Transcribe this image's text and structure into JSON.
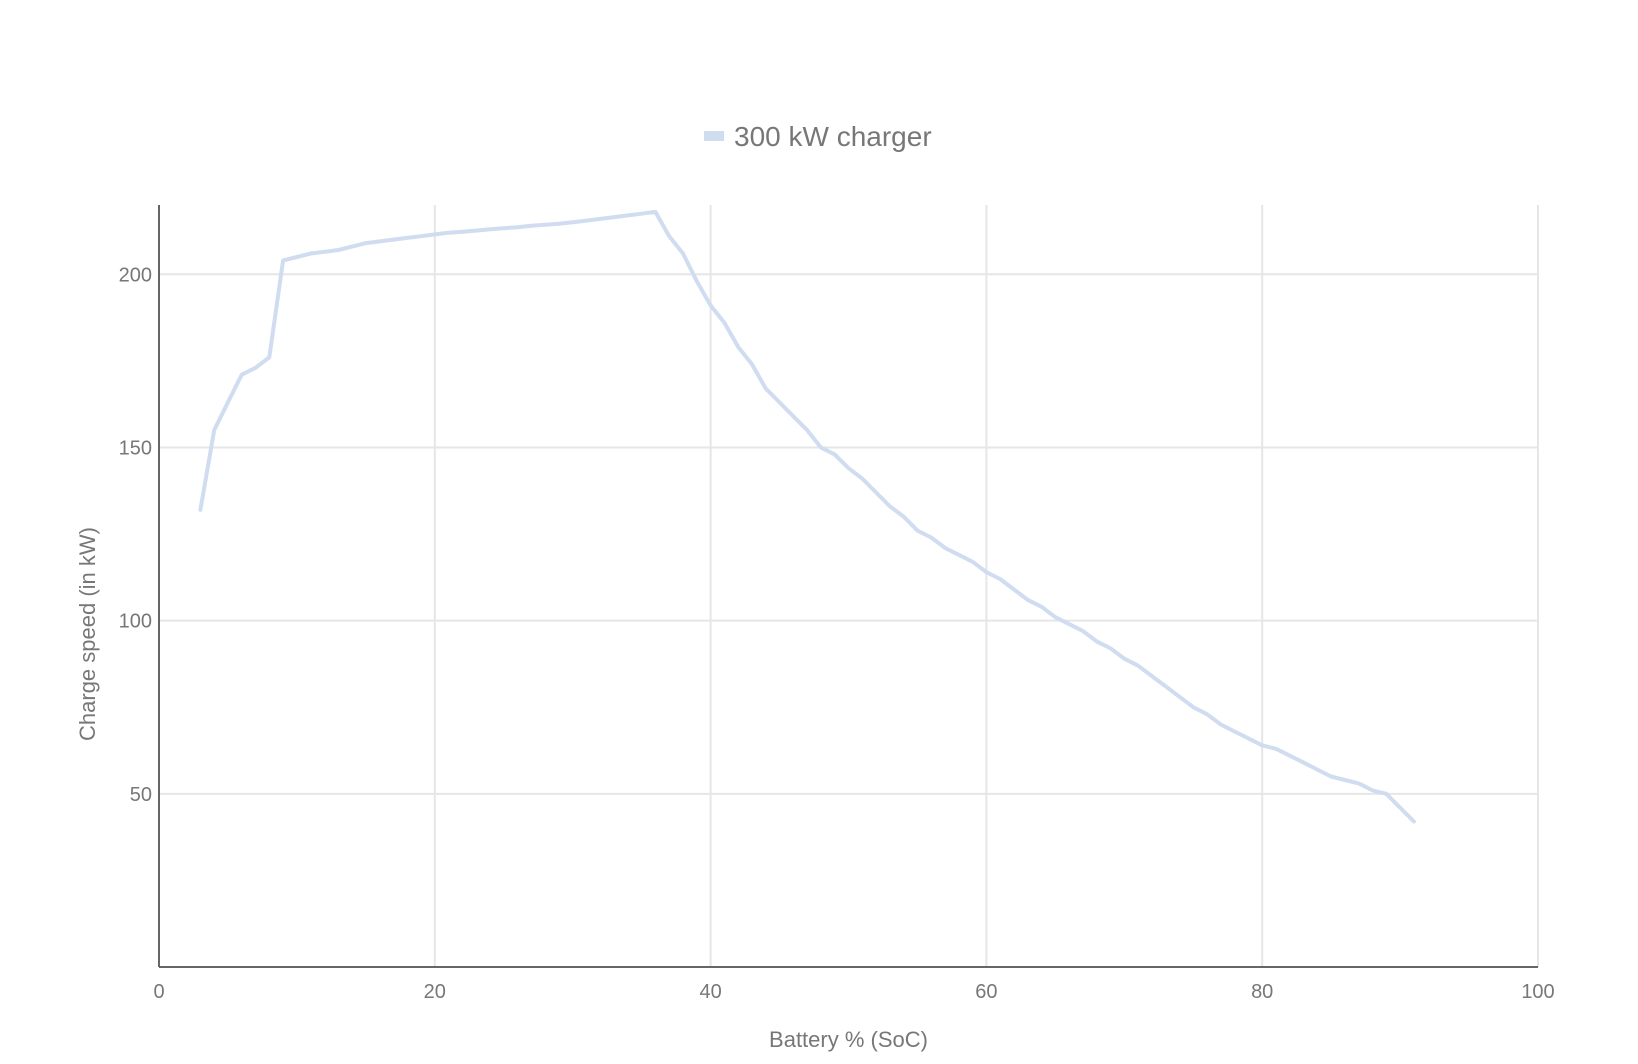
{
  "chart_data": {
    "type": "line",
    "title": "",
    "xlabel": "Battery % (SoC)",
    "ylabel": "Charge speed (in kW)",
    "xlim": [
      0,
      100
    ],
    "ylim": [
      0,
      220
    ],
    "xticks": [
      0,
      20,
      40,
      60,
      80,
      100
    ],
    "yticks": [
      50,
      100,
      150,
      200
    ],
    "grid": true,
    "legend_position": "top-center",
    "series": [
      {
        "name": "300 kW charger",
        "color": "#d0dcf0",
        "x": [
          3,
          4,
          5,
          6,
          7,
          8,
          9,
          10,
          11,
          12,
          13,
          14,
          15,
          16,
          17,
          18,
          19,
          20,
          21,
          22,
          23,
          24,
          25,
          26,
          27,
          28,
          29,
          30,
          31,
          32,
          33,
          34,
          35,
          36,
          37,
          38,
          39,
          40,
          41,
          42,
          43,
          44,
          45,
          46,
          47,
          48,
          49,
          50,
          51,
          52,
          53,
          54,
          55,
          56,
          57,
          58,
          59,
          60,
          61,
          62,
          63,
          64,
          65,
          66,
          67,
          68,
          69,
          70,
          71,
          72,
          73,
          74,
          75,
          76,
          77,
          78,
          79,
          80,
          81,
          82,
          83,
          84,
          85,
          86,
          87,
          88,
          89,
          90,
          91
        ],
        "y": [
          132,
          155,
          163,
          171,
          173,
          176,
          204,
          205,
          206,
          206.5,
          207,
          208,
          209,
          209.5,
          210,
          210.5,
          211,
          211.5,
          212,
          212.3,
          212.6,
          213,
          213.3,
          213.6,
          214,
          214.3,
          214.6,
          215,
          215.5,
          216,
          216.5,
          217,
          217.5,
          218,
          211,
          206,
          198,
          191,
          186,
          179,
          174,
          167,
          163,
          159,
          155,
          150,
          148,
          144,
          141,
          137,
          133,
          130,
          126,
          124,
          121,
          119,
          117,
          114,
          112,
          109,
          106,
          104,
          101,
          99,
          97,
          94,
          92,
          89,
          87,
          84,
          81,
          78,
          75,
          73,
          70,
          68,
          66,
          64,
          63,
          61,
          59,
          57,
          55,
          54,
          53,
          51,
          50,
          46,
          42
        ]
      }
    ]
  }
}
